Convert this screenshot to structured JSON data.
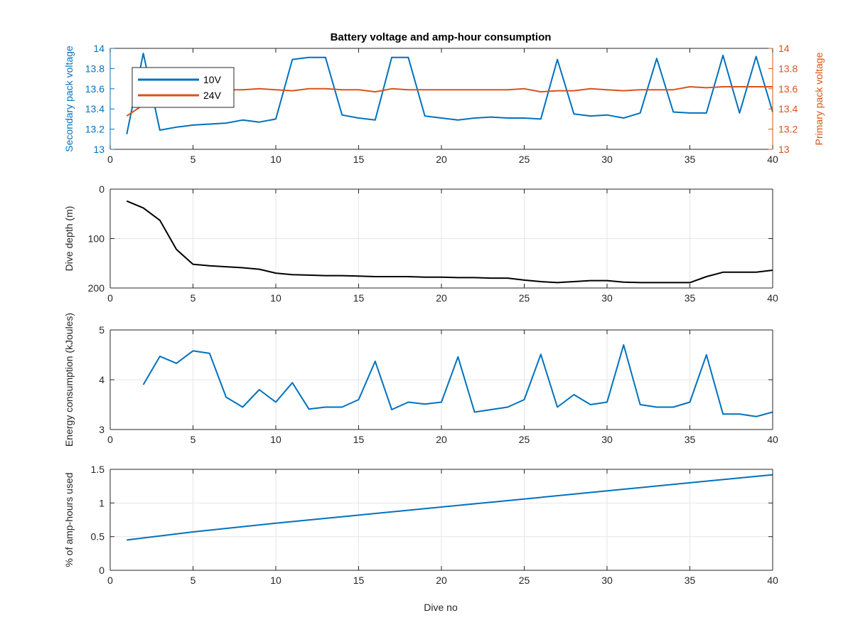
{
  "colors": {
    "blue": "#0072BD",
    "orange": "#D95319",
    "black": "#000000",
    "grid": "#e6e6e6"
  },
  "chart_data": [
    {
      "type": "line",
      "title": "Battery voltage and amp-hour consumption",
      "xlabel": "",
      "ylabel": "Secondary pack voltage",
      "y2label": "Primary pack voltage",
      "xlim": [
        0,
        40
      ],
      "ylim": [
        13,
        14
      ],
      "y2lim": [
        13,
        14
      ],
      "xticks": [
        "0",
        "5",
        "10",
        "15",
        "20",
        "25",
        "30",
        "35",
        "40"
      ],
      "yticks": [
        "13",
        "13.2",
        "13.4",
        "13.6",
        "13.8",
        "14"
      ],
      "y2ticks": [
        "13",
        "13.2",
        "13.4",
        "13.6",
        "13.8",
        "14"
      ],
      "grid": false,
      "legend_position": "top-left",
      "x": [
        1,
        2,
        3,
        4,
        5,
        6,
        7,
        8,
        9,
        10,
        11,
        12,
        13,
        14,
        15,
        16,
        17,
        18,
        19,
        20,
        21,
        22,
        23,
        24,
        25,
        26,
        27,
        28,
        29,
        30,
        31,
        32,
        33,
        34,
        35,
        36,
        37,
        38,
        39,
        40
      ],
      "series": [
        {
          "name": "10V",
          "axis": "left",
          "color": "blue",
          "values": [
            13.15,
            13.95,
            13.19,
            13.22,
            13.24,
            13.25,
            13.26,
            13.29,
            13.27,
            13.3,
            13.89,
            13.91,
            13.91,
            13.34,
            13.31,
            13.29,
            13.91,
            13.91,
            13.33,
            13.31,
            13.29,
            13.31,
            13.32,
            13.31,
            13.31,
            13.3,
            13.89,
            13.35,
            13.33,
            13.34,
            13.31,
            13.36,
            13.9,
            13.37,
            13.36,
            13.36,
            13.93,
            13.36,
            13.92,
            13.37
          ]
        },
        {
          "name": "24V",
          "axis": "right",
          "color": "orange",
          "values": [
            13.33,
            13.44,
            13.52,
            13.57,
            13.59,
            13.59,
            13.59,
            13.59,
            13.6,
            13.59,
            13.58,
            13.6,
            13.6,
            13.59,
            13.59,
            13.57,
            13.6,
            13.59,
            13.59,
            13.59,
            13.59,
            13.59,
            13.59,
            13.59,
            13.6,
            13.57,
            13.58,
            13.58,
            13.6,
            13.59,
            13.58,
            13.59,
            13.59,
            13.59,
            13.62,
            13.61,
            13.62,
            13.62,
            13.62,
            13.62
          ]
        }
      ]
    },
    {
      "type": "line",
      "title": "",
      "xlabel": "",
      "ylabel": "Dive depth (m)",
      "xlim": [
        0,
        40
      ],
      "ylim": [
        0,
        200
      ],
      "y_reversed": true,
      "xticks": [
        "0",
        "5",
        "10",
        "15",
        "20",
        "25",
        "30",
        "35",
        "40"
      ],
      "yticks": [
        "0",
        "100",
        "200"
      ],
      "grid": true,
      "x": [
        1,
        2,
        3,
        4,
        5,
        6,
        7,
        8,
        9,
        10,
        11,
        12,
        13,
        14,
        15,
        16,
        17,
        18,
        19,
        20,
        21,
        22,
        23,
        24,
        25,
        26,
        27,
        28,
        29,
        30,
        31,
        32,
        33,
        34,
        35,
        36,
        37,
        38,
        39,
        40
      ],
      "series": [
        {
          "color": "black",
          "values": [
            24,
            38,
            63,
            122,
            152,
            155,
            157,
            159,
            162,
            170,
            173,
            174,
            175,
            175,
            176,
            177,
            177,
            177,
            178,
            178,
            179,
            179,
            180,
            180,
            184,
            187,
            189,
            187,
            185,
            185,
            188,
            189,
            189,
            189,
            189,
            177,
            168,
            168,
            168,
            164
          ]
        }
      ]
    },
    {
      "type": "line",
      "title": "",
      "xlabel": "",
      "ylabel": "Energy consumption (kJoules)",
      "xlim": [
        0,
        40
      ],
      "ylim": [
        3,
        5
      ],
      "xticks": [
        "0",
        "5",
        "10",
        "15",
        "20",
        "25",
        "30",
        "35",
        "40"
      ],
      "yticks": [
        "3",
        "4",
        "5"
      ],
      "grid": true,
      "x": [
        2,
        3,
        4,
        5,
        6,
        7,
        8,
        9,
        10,
        11,
        12,
        13,
        14,
        15,
        16,
        17,
        18,
        19,
        20,
        21,
        22,
        23,
        24,
        25,
        26,
        27,
        28,
        29,
        30,
        31,
        32,
        33,
        34,
        35,
        36,
        37,
        38,
        39,
        40
      ],
      "series": [
        {
          "color": "blue",
          "values": [
            3.9,
            4.47,
            4.33,
            4.58,
            4.53,
            3.65,
            3.45,
            3.8,
            3.55,
            3.94,
            3.41,
            3.45,
            3.45,
            3.6,
            4.37,
            3.4,
            3.55,
            3.51,
            3.55,
            4.46,
            3.35,
            3.4,
            3.45,
            3.6,
            4.51,
            3.45,
            3.7,
            3.5,
            3.55,
            4.7,
            3.5,
            3.45,
            3.45,
            3.55,
            4.5,
            3.31,
            3.31,
            3.26,
            3.35
          ]
        }
      ]
    },
    {
      "type": "line",
      "title": "",
      "xlabel": "Dive no",
      "ylabel": "% of amp-hours used",
      "xlim": [
        0,
        40
      ],
      "ylim": [
        0,
        1.5
      ],
      "xticks": [
        "0",
        "5",
        "10",
        "15",
        "20",
        "25",
        "30",
        "35",
        "40"
      ],
      "yticks": [
        "0",
        "0.5",
        "1",
        "1.5"
      ],
      "grid": true,
      "x": [
        1,
        5,
        10,
        15,
        20,
        25,
        30,
        35,
        40
      ],
      "series": [
        {
          "color": "blue",
          "values": [
            0.45,
            0.57,
            0.7,
            0.82,
            0.94,
            1.06,
            1.18,
            1.3,
            1.42
          ]
        }
      ]
    }
  ]
}
